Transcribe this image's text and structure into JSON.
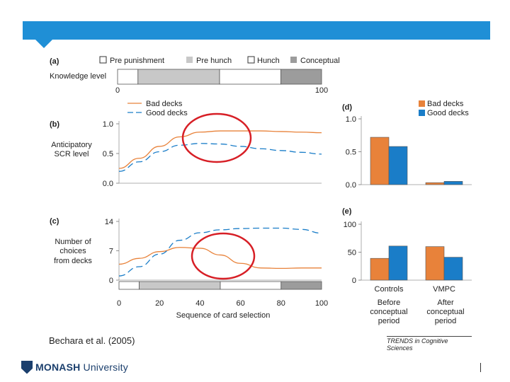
{
  "header": {
    "banner_color": "#1f8fd6"
  },
  "colors": {
    "bad": "#e8823a",
    "good": "#1a7dc8",
    "pre_hunch": "#c8c8c8",
    "conceptual": "#9c9c9c",
    "circle": "#d71f26"
  },
  "chart_data": [
    {
      "id": "a",
      "panel_label": "(a)",
      "type": "timeline",
      "ylabel": "Knowledge level",
      "legend": [
        "Pre punishment",
        "Pre hunch",
        "Hunch",
        "Conceptual"
      ],
      "xlim": [
        0,
        100
      ],
      "tick_labels": [
        "0",
        "100"
      ],
      "segments": [
        {
          "label": "Pre punishment",
          "start": 0,
          "end": 10
        },
        {
          "label": "Pre hunch",
          "start": 10,
          "end": 50
        },
        {
          "label": "Hunch",
          "start": 50,
          "end": 80
        },
        {
          "label": "Conceptual",
          "start": 80,
          "end": 100
        }
      ]
    },
    {
      "id": "b",
      "panel_label": "(b)",
      "type": "line",
      "ylabel": [
        "Anticipatory",
        "SCR level"
      ],
      "xlim": [
        0,
        100
      ],
      "ylim": [
        0,
        1
      ],
      "yticks": [
        "0.0",
        "0.5",
        "1.0"
      ],
      "series": [
        {
          "name": "Bad decks",
          "x": [
            0,
            10,
            20,
            30,
            40,
            50,
            60,
            70,
            80,
            90,
            100
          ],
          "values": [
            0.25,
            0.42,
            0.62,
            0.78,
            0.86,
            0.88,
            0.88,
            0.88,
            0.87,
            0.86,
            0.85
          ]
        },
        {
          "name": "Good decks",
          "x": [
            0,
            10,
            20,
            30,
            40,
            50,
            60,
            70,
            80,
            90,
            100
          ],
          "values": [
            0.2,
            0.36,
            0.53,
            0.64,
            0.67,
            0.66,
            0.62,
            0.58,
            0.55,
            0.52,
            0.49
          ]
        }
      ]
    },
    {
      "id": "c",
      "panel_label": "(c)",
      "type": "line",
      "ylabel": [
        "Number of",
        "choices",
        "from decks"
      ],
      "xlabel": "Sequence of card selection",
      "xlim": [
        0,
        100
      ],
      "ylim": [
        0,
        14
      ],
      "yticks": [
        "0",
        "7",
        "14"
      ],
      "xticks": [
        "0",
        "20",
        "40",
        "60",
        "80",
        "100"
      ],
      "series": [
        {
          "name": "Bad decks",
          "x": [
            0,
            10,
            20,
            30,
            40,
            50,
            60,
            70,
            80,
            90,
            100
          ],
          "values": [
            3.8,
            5.2,
            6.8,
            7.8,
            7.6,
            6.0,
            4.0,
            2.9,
            2.8,
            2.9,
            2.9
          ]
        },
        {
          "name": "Good decks",
          "x": [
            0,
            10,
            20,
            30,
            40,
            50,
            60,
            70,
            80,
            90,
            100
          ],
          "values": [
            1.0,
            3.2,
            6.2,
            9.5,
            11.3,
            12.0,
            12.3,
            12.4,
            12.4,
            12.1,
            11.2
          ]
        }
      ]
    },
    {
      "id": "d",
      "panel_label": "(d)",
      "type": "bar",
      "legend": [
        "Bad decks",
        "Good decks"
      ],
      "categories": [
        "Controls",
        "VMPC"
      ],
      "ylim": [
        0,
        1
      ],
      "yticks": [
        "0.0",
        "0.5",
        "1.0"
      ],
      "series": [
        {
          "name": "Bad decks",
          "values": [
            0.72,
            0.03
          ]
        },
        {
          "name": "Good decks",
          "values": [
            0.58,
            0.05
          ]
        }
      ]
    },
    {
      "id": "e",
      "panel_label": "(e)",
      "type": "bar",
      "categories": [
        "Controls",
        "VMPC"
      ],
      "category_notes": [
        [
          "Before",
          "conceptual",
          "period"
        ],
        [
          "After",
          "conceptual",
          "period"
        ]
      ],
      "ylim": [
        0,
        100
      ],
      "yticks": [
        "0",
        "50",
        "100"
      ],
      "series": [
        {
          "name": "Bad decks",
          "values": [
            39,
            60
          ]
        },
        {
          "name": "Good decks",
          "values": [
            61,
            41
          ]
        }
      ]
    }
  ],
  "footer": {
    "citation": "Bechara et al. (2005)",
    "journal": "TRENDS in Cognitive Sciences",
    "logo_bold": "MONASH",
    "logo_rest": " University"
  }
}
